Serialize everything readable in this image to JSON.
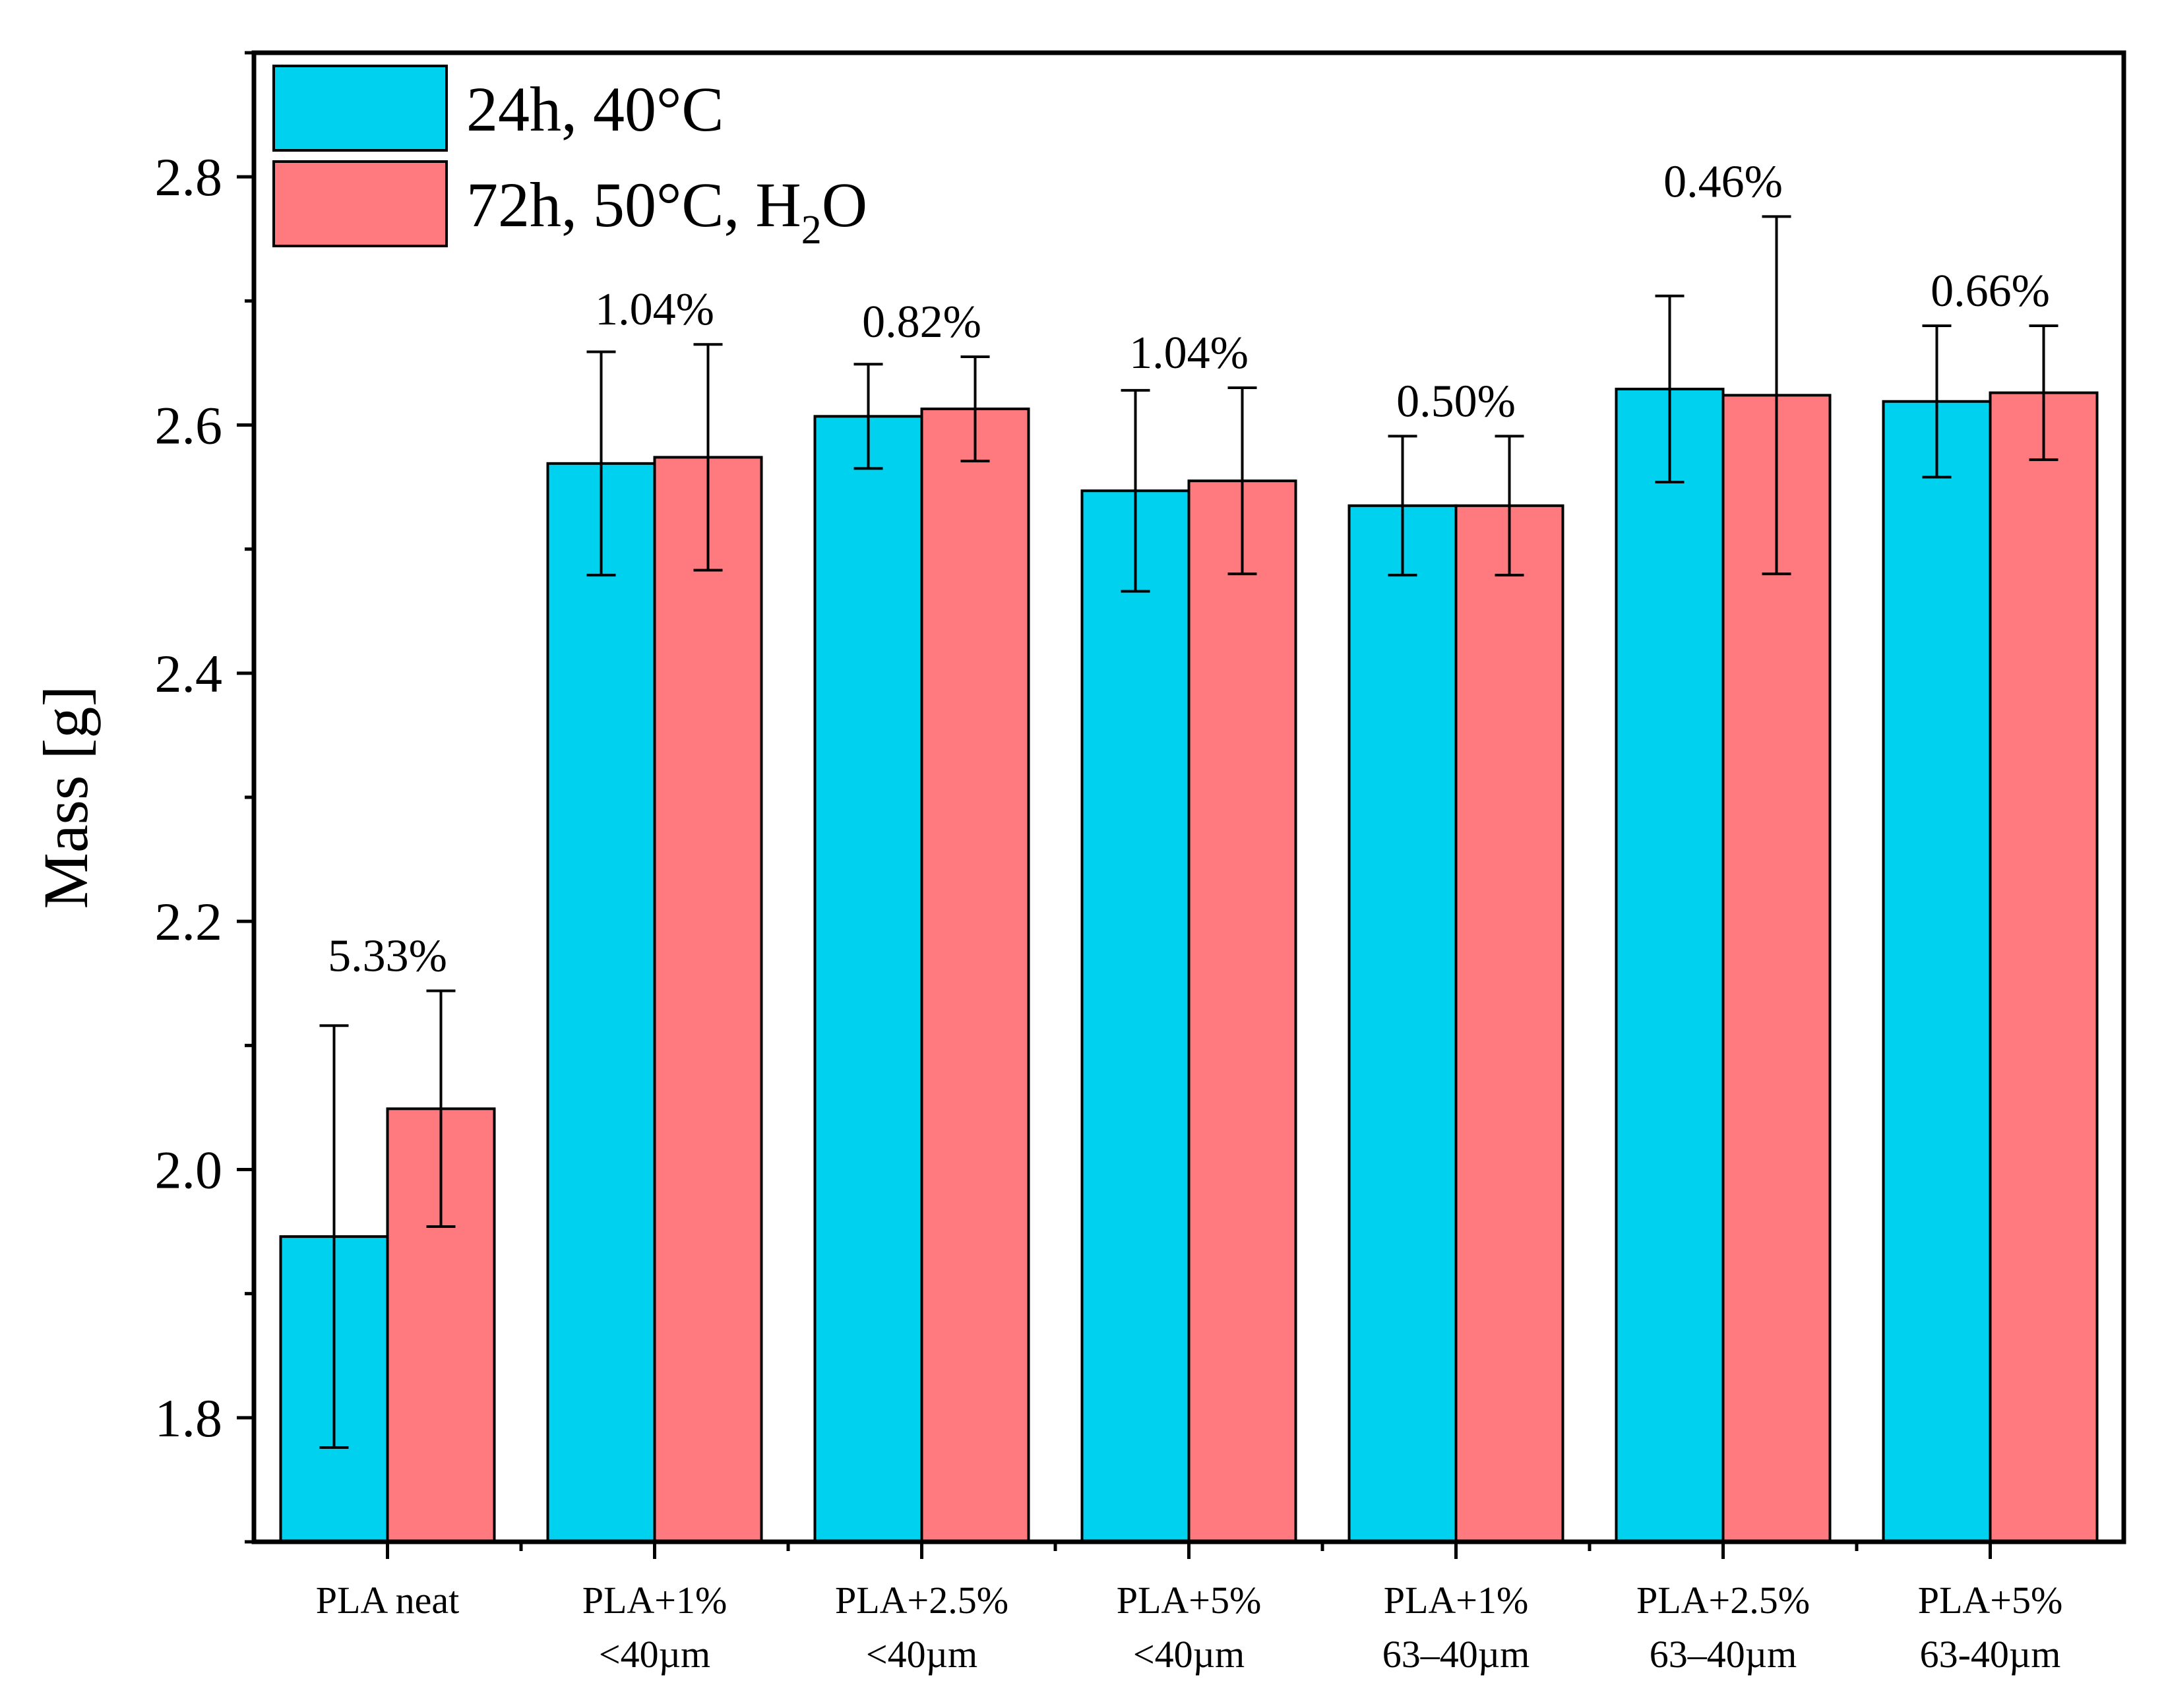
{
  "chart_data": {
    "type": "bar",
    "title": "",
    "xlabel": "",
    "ylabel": "Mass [g]",
    "ylim": [
      1.7,
      2.9
    ],
    "yticks": [
      "1.8",
      "2.0",
      "2.2",
      "2.4",
      "2.6",
      "2.8"
    ],
    "grid": false,
    "legend_position": "top-left",
    "categories": [
      [
        "PLA neat"
      ],
      [
        "PLA+1%",
        "<40µm"
      ],
      [
        "PLA+2.5%",
        "<40µm"
      ],
      [
        "PLA+5%",
        "<40µm"
      ],
      [
        "PLA+1%",
        "63–40µm"
      ],
      [
        "PLA+2.5%",
        "63–40µm"
      ],
      [
        "PLA+5%",
        "63-40µm"
      ]
    ],
    "series": [
      {
        "name": "24h, 40°C",
        "color": "#00D1EE",
        "values": [
          1.946,
          2.569,
          2.607,
          2.547,
          2.535,
          2.629,
          2.619
        ],
        "errors": [
          0.17,
          0.09,
          0.042,
          0.081,
          0.056,
          0.075,
          0.061
        ]
      },
      {
        "name": "72h, 50°C, H2O",
        "legend_main": "72h, 50°C, H",
        "legend_sub": "2",
        "legend_tail": "O",
        "color": "#FF7A7E",
        "values": [
          2.049,
          2.574,
          2.613,
          2.555,
          2.535,
          2.624,
          2.626
        ],
        "errors": [
          0.095,
          0.091,
          0.042,
          0.075,
          0.056,
          0.144,
          0.054
        ]
      }
    ],
    "annotations": [
      "5.33%",
      "1.04%",
      "0.82%",
      "1.04%",
      "0.50%",
      "0.46%",
      "0.66%"
    ]
  }
}
